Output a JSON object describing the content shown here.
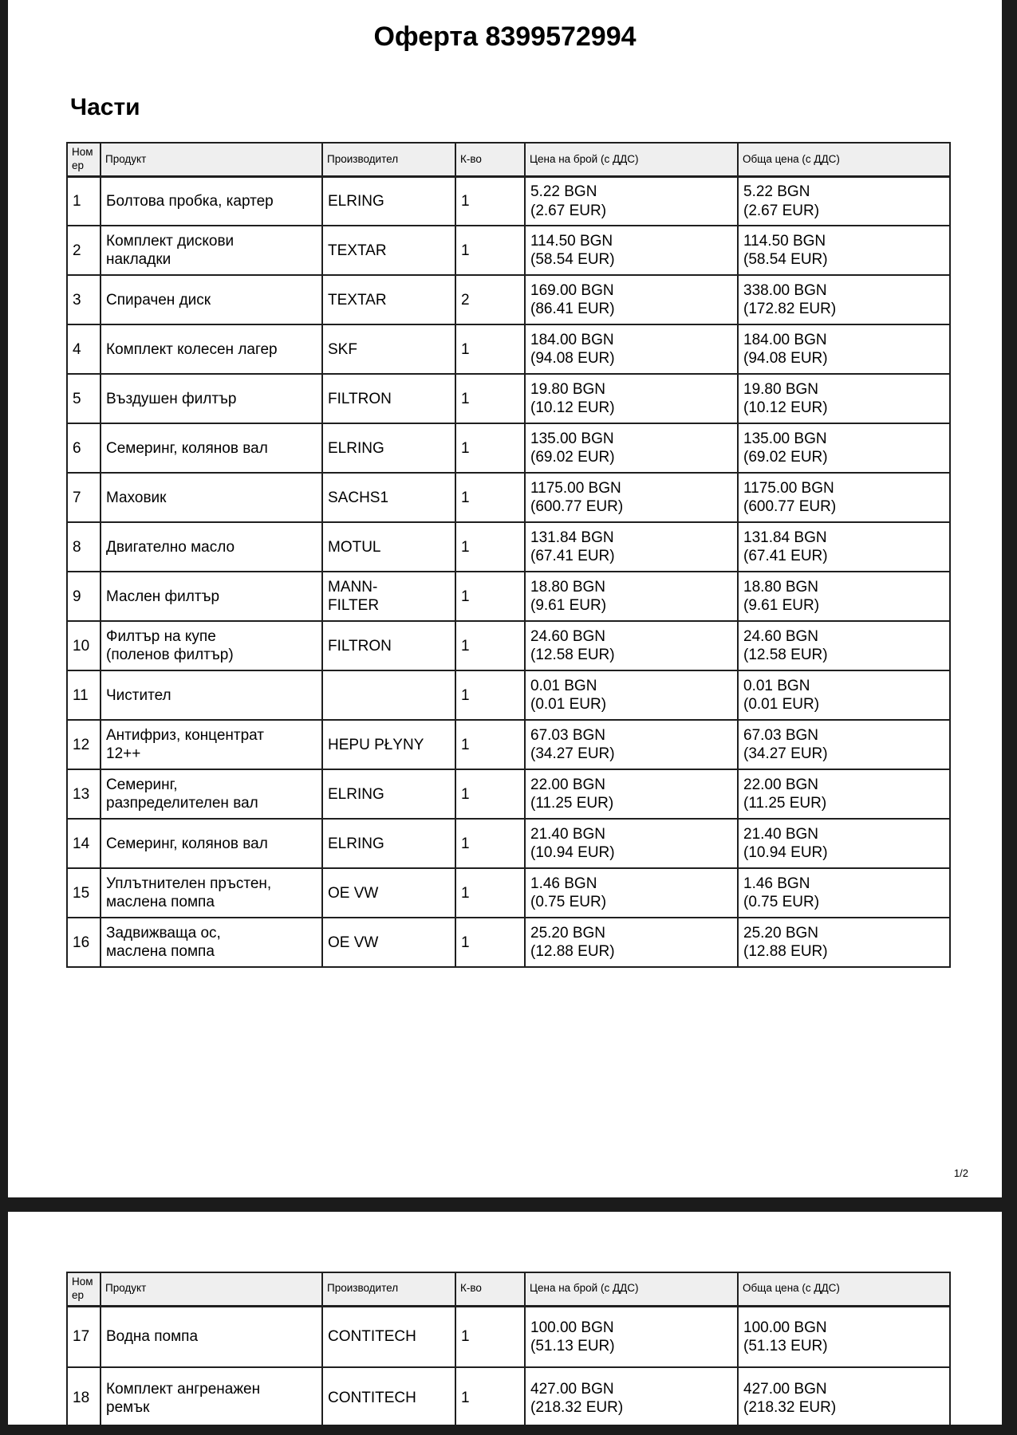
{
  "document": {
    "title": "Оферта 8399572994",
    "section_heading": "Части",
    "page_indicator": "1/2"
  },
  "colors": {
    "backdrop": "#1b1b1b",
    "page_background": "#ffffff",
    "table_header_background": "#efefef",
    "table_border": "#1f1f1f",
    "text": "#000000"
  },
  "parts_table": {
    "column_headers": [
      "Ном\nер",
      "Продукт",
      "Производител",
      "К-во",
      "Цена на брой (с ДДС)",
      "Обща цена (с ДДС)"
    ],
    "page1_rows": [
      {
        "num": "1",
        "product": "Болтова пробка, картер",
        "manufacturer": "ELRING",
        "qty": "1",
        "unit_price_bgn": "5.22 BGN",
        "unit_price_eur": "(2.67 EUR)",
        "total_price_bgn": "5.22 BGN",
        "total_price_eur": "(2.67 EUR)"
      },
      {
        "num": "2",
        "product": "Комплект дискови\nнакладки",
        "manufacturer": "TEXTAR",
        "qty": "1",
        "unit_price_bgn": "114.50 BGN",
        "unit_price_eur": "(58.54 EUR)",
        "total_price_bgn": "114.50 BGN",
        "total_price_eur": "(58.54 EUR)"
      },
      {
        "num": "3",
        "product": "Спирачен диск",
        "manufacturer": "TEXTAR",
        "qty": "2",
        "unit_price_bgn": "169.00 BGN",
        "unit_price_eur": "(86.41 EUR)",
        "total_price_bgn": "338.00 BGN",
        "total_price_eur": "(172.82 EUR)"
      },
      {
        "num": "4",
        "product": "Комплект колесен лагер",
        "manufacturer": "SKF",
        "qty": "1",
        "unit_price_bgn": "184.00 BGN",
        "unit_price_eur": "(94.08 EUR)",
        "total_price_bgn": "184.00 BGN",
        "total_price_eur": "(94.08 EUR)"
      },
      {
        "num": "5",
        "product": "Въздушен филтър",
        "manufacturer": "FILTRON",
        "qty": "1",
        "unit_price_bgn": "19.80 BGN",
        "unit_price_eur": "(10.12 EUR)",
        "total_price_bgn": "19.80 BGN",
        "total_price_eur": "(10.12 EUR)"
      },
      {
        "num": "6",
        "product": "Семеринг, колянов вал",
        "manufacturer": "ELRING",
        "qty": "1",
        "unit_price_bgn": "135.00 BGN",
        "unit_price_eur": "(69.02 EUR)",
        "total_price_bgn": "135.00 BGN",
        "total_price_eur": "(69.02 EUR)"
      },
      {
        "num": "7",
        "product": "Маховик",
        "manufacturer": "SACHS1",
        "qty": "1",
        "unit_price_bgn": "1175.00 BGN",
        "unit_price_eur": "(600.77 EUR)",
        "total_price_bgn": "1175.00 BGN",
        "total_price_eur": "(600.77 EUR)"
      },
      {
        "num": "8",
        "product": "Двигателно масло",
        "manufacturer": "MOTUL",
        "qty": "1",
        "unit_price_bgn": "131.84 BGN",
        "unit_price_eur": "(67.41 EUR)",
        "total_price_bgn": "131.84 BGN",
        "total_price_eur": "(67.41 EUR)"
      },
      {
        "num": "9",
        "product": "Маслен филтър",
        "manufacturer": "MANN-\nFILTER",
        "qty": "1",
        "unit_price_bgn": "18.80 BGN",
        "unit_price_eur": "(9.61 EUR)",
        "total_price_bgn": "18.80 BGN",
        "total_price_eur": "(9.61 EUR)"
      },
      {
        "num": "10",
        "product": "Филтър на купе\n(поленов филтър)",
        "manufacturer": "FILTRON",
        "qty": "1",
        "unit_price_bgn": "24.60 BGN",
        "unit_price_eur": "(12.58 EUR)",
        "total_price_bgn": "24.60 BGN",
        "total_price_eur": "(12.58 EUR)"
      },
      {
        "num": "11",
        "product": "Чистител",
        "manufacturer": "",
        "qty": "1",
        "unit_price_bgn": "0.01 BGN",
        "unit_price_eur": "(0.01 EUR)",
        "total_price_bgn": "0.01 BGN",
        "total_price_eur": "(0.01 EUR)"
      },
      {
        "num": "12",
        "product": "Антифриз, концентрат\n12++",
        "manufacturer": "HEPU PŁYNY",
        "qty": "1",
        "unit_price_bgn": "67.03 BGN",
        "unit_price_eur": "(34.27 EUR)",
        "total_price_bgn": "67.03 BGN",
        "total_price_eur": "(34.27 EUR)"
      },
      {
        "num": "13",
        "product": "Семеринг,\nразпределителен вал",
        "manufacturer": "ELRING",
        "qty": "1",
        "unit_price_bgn": "22.00 BGN",
        "unit_price_eur": "(11.25 EUR)",
        "total_price_bgn": "22.00 BGN",
        "total_price_eur": "(11.25 EUR)"
      },
      {
        "num": "14",
        "product": "Семеринг, колянов вал",
        "manufacturer": "ELRING",
        "qty": "1",
        "unit_price_bgn": "21.40 BGN",
        "unit_price_eur": "(10.94 EUR)",
        "total_price_bgn": "21.40 BGN",
        "total_price_eur": "(10.94 EUR)"
      },
      {
        "num": "15",
        "product": "Уплътнителен пръстен,\nмаслена помпа",
        "manufacturer": "OE VW",
        "qty": "1",
        "unit_price_bgn": "1.46 BGN",
        "unit_price_eur": "(0.75 EUR)",
        "total_price_bgn": "1.46 BGN",
        "total_price_eur": "(0.75 EUR)"
      },
      {
        "num": "16",
        "product": "Задвижваща ос,\nмаслена помпа",
        "manufacturer": "OE VW",
        "qty": "1",
        "unit_price_bgn": "25.20 BGN",
        "unit_price_eur": "(12.88 EUR)",
        "total_price_bgn": "25.20 BGN",
        "total_price_eur": "(12.88 EUR)"
      }
    ],
    "page2_rows": [
      {
        "num": "17",
        "product": "Водна помпа",
        "manufacturer": "CONTITECH",
        "qty": "1",
        "unit_price_bgn": "100.00 BGN",
        "unit_price_eur": "(51.13 EUR)",
        "total_price_bgn": "100.00 BGN",
        "total_price_eur": "(51.13 EUR)"
      },
      {
        "num": "18",
        "product": "Комплект ангренажен\nремък",
        "manufacturer": "CONTITECH",
        "qty": "1",
        "unit_price_bgn": "427.00 BGN",
        "unit_price_eur": "(218.32 EUR)",
        "total_price_bgn": "427.00 BGN",
        "total_price_eur": "(218.32 EUR)"
      }
    ]
  }
}
